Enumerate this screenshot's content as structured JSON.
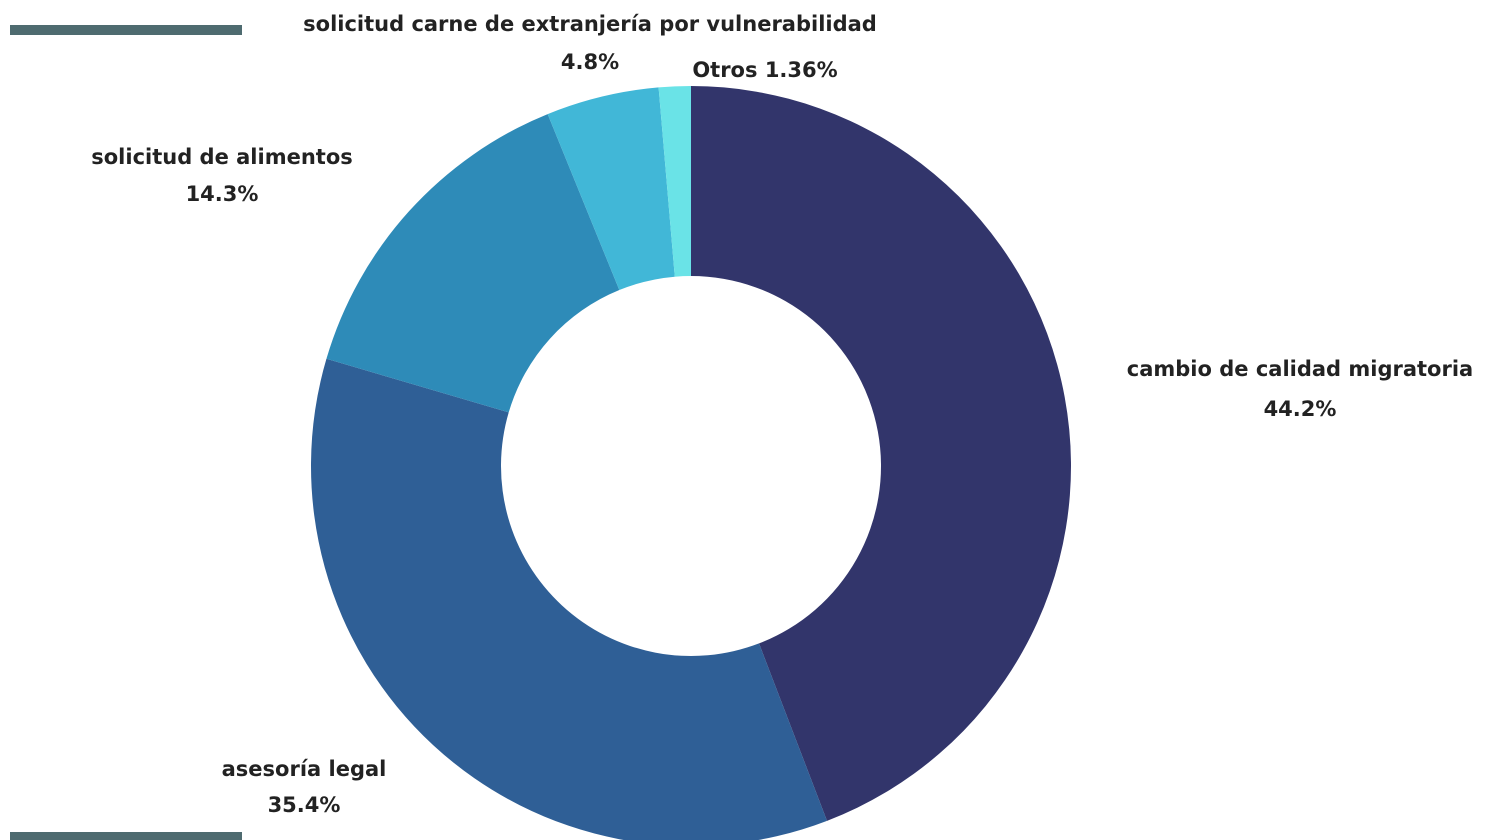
{
  "decor": {
    "accent_color": "#4e6b70"
  },
  "chart_data": {
    "type": "pie",
    "variant": "donut",
    "start_angle_deg": 0,
    "direction": "clockwise",
    "slices": [
      {
        "label": "cambio de calidad migratoria",
        "value": 44.2,
        "value_label": "44.2%",
        "color": "#32356b"
      },
      {
        "label": "asesoría legal",
        "value": 35.4,
        "value_label": "35.4%",
        "color": "#2f5f96"
      },
      {
        "label": "solicitud de alimentos",
        "value": 14.3,
        "value_label": "14.3%",
        "color": "#2e8bb8"
      },
      {
        "label": "solicitud carne de extranjería por vulnerabilidad",
        "value": 4.8,
        "value_label": "4.8%",
        "color": "#41b7d7"
      },
      {
        "label": "Otros",
        "value": 1.36,
        "value_label": "1.36%",
        "color": "#6ae3e7"
      }
    ]
  }
}
